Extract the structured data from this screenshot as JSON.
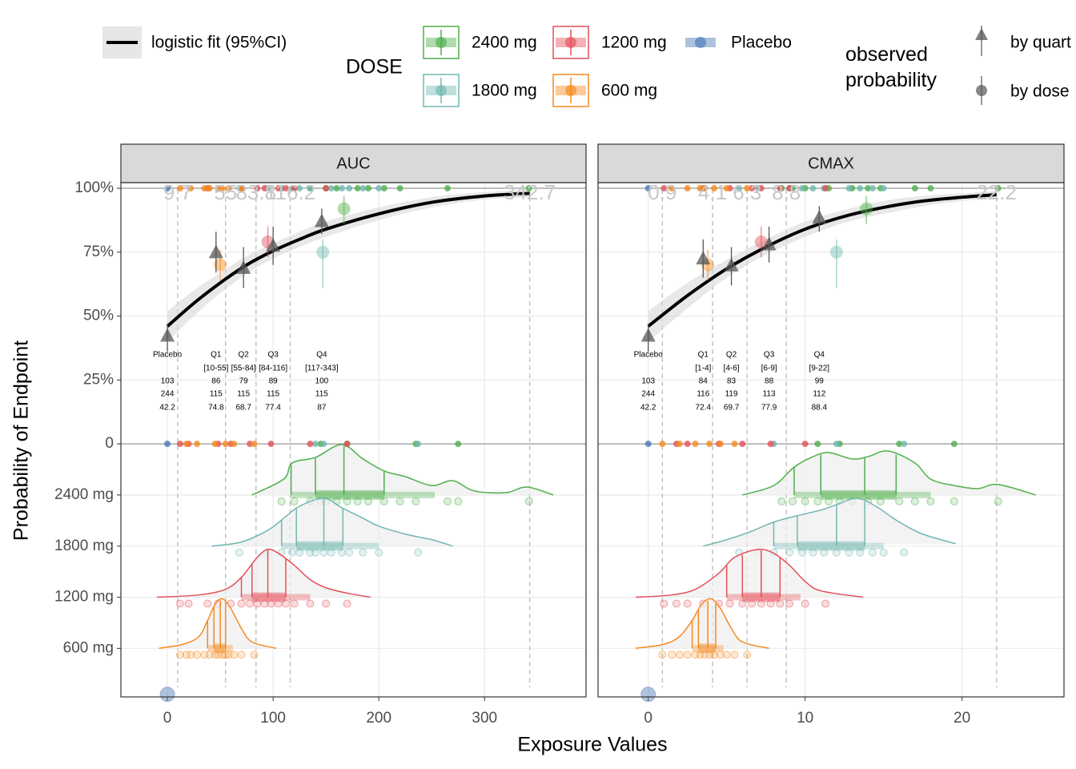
{
  "legend": {
    "fit_label": "logistic fit (95%CI)",
    "dose_title": "DOSE",
    "doses": [
      {
        "name": "2400 mg",
        "color": "#4daf4a"
      },
      {
        "name": "1800 mg",
        "color": "#72b7b2"
      },
      {
        "name": "1200 mg",
        "color": "#e4505a"
      },
      {
        "name": "600 mg",
        "color": "#f58a1f"
      },
      {
        "name": "Placebo",
        "color": "#4a78b5"
      }
    ],
    "observed_title": "observed probability",
    "by_quartile": "by quart",
    "by_dose": "by dose"
  },
  "axis_labels": {
    "y": "Probability of Endpoint",
    "x": "Exposure Values"
  },
  "chart_data": [
    {
      "type": "exposure-response",
      "title": "AUC",
      "xlim": [
        -44,
        396
      ],
      "xticks": [
        0,
        100,
        200,
        300
      ],
      "ylim": [
        -99,
        102.2
      ],
      "yticks": [
        {
          "value": 100,
          "label": "100%"
        },
        {
          "value": 75,
          "label": "75%"
        },
        {
          "value": 50,
          "label": "50%"
        },
        {
          "value": 25,
          "label": "25%"
        },
        0,
        {
          "value": -20,
          "label": "2400 mg"
        },
        {
          "value": -40,
          "label": "1800 mg"
        },
        {
          "value": -60,
          "label": "1200 mg"
        },
        {
          "value": -80,
          "label": "600 mg"
        }
      ],
      "grid": true,
      "hlines": [
        100,
        0
      ],
      "cutpoints": [
        9.7,
        55,
        83.8,
        116.2,
        342.7
      ],
      "fit": {
        "x": [
          0,
          25,
          50,
          75,
          100,
          125,
          150,
          200,
          250,
          300,
          342.7
        ],
        "y": [
          46,
          55,
          63,
          70,
          75.5,
          80,
          84,
          90,
          94.5,
          97,
          98
        ],
        "lower": [
          40,
          50,
          59,
          66.5,
          72.5,
          77,
          81,
          87.5,
          92.5,
          95.5,
          96.5
        ],
        "upper": [
          52,
          60,
          67,
          73.5,
          78.5,
          83,
          87,
          92.5,
          96.5,
          98.5,
          99.5
        ]
      },
      "quartiles": {
        "labels": [
          "Placebo",
          "Q1",
          "Q2",
          "Q3",
          "Q4"
        ],
        "ranges": [
          null,
          "[10-55]",
          "[55-84]",
          "[84-116]",
          "[117-343]"
        ],
        "events": [
          103,
          86,
          79,
          89,
          100
        ],
        "n": [
          244,
          115,
          115,
          115,
          115
        ],
        "pct": [
          42.2,
          74.8,
          68.7,
          77.4,
          87
        ],
        "x": [
          0,
          46,
          72,
          100,
          146
        ],
        "lower": [
          36,
          67,
          61,
          70,
          82
        ],
        "upper": [
          47,
          83,
          77,
          85,
          92
        ]
      },
      "series": [
        {
          "row": -20,
          "observed": {
            "x": 167,
            "y": 92,
            "lower": 86,
            "upper": 97
          },
          "summary": {
            "p10": 117,
            "q1": 140,
            "median": 167,
            "q3": 205,
            "p90": 253
          },
          "density": {
            "x": [
              80,
              110,
              118,
              140,
              165,
              185,
              205,
              225,
              250,
              270,
              290,
              320,
              340,
              365
            ],
            "y": [
              -20,
              -13.8,
              -7.5,
              -5.3,
              -0.3,
              -5.9,
              -10.6,
              -12.8,
              -16.3,
              -14.4,
              -18.4,
              -19.1,
              -16.9,
              -20
            ]
          },
          "exposures": [
            108,
            120,
            135,
            145,
            150,
            160,
            170,
            180,
            190,
            205,
            220,
            235,
            265,
            275,
            342
          ],
          "responses": [
            100,
            100,
            100,
            0,
            100,
            100,
            0,
            100,
            100,
            100,
            100,
            0,
            100,
            0,
            100
          ]
        },
        {
          "row": -40,
          "observed": {
            "x": 147,
            "y": 75,
            "lower": 61,
            "upper": 80
          },
          "summary": {
            "p10": 108,
            "q1": 122,
            "median": 148,
            "q3": 166,
            "p90": 200
          },
          "density": {
            "x": [
              42,
              70,
              95,
              110,
              125,
              148,
              165,
              185,
              200,
              225,
              250,
              270
            ],
            "y": [
              -40,
              -38.4,
              -33.8,
              -29.1,
              -24.4,
              -21.3,
              -25,
              -29.1,
              -32.2,
              -35.3,
              -37.5,
              -40
            ]
          },
          "exposures": [
            68,
            95,
            108,
            118,
            125,
            135,
            140,
            148,
            155,
            165,
            172,
            185,
            200,
            237
          ],
          "responses": [
            100,
            100,
            100,
            100,
            100,
            100,
            0,
            0,
            100,
            100,
            100,
            100,
            100,
            0
          ]
        },
        {
          "row": -60,
          "observed": {
            "x": 95,
            "y": 79,
            "lower": 73,
            "upper": 85
          },
          "summary": {
            "p10": 70,
            "q1": 80,
            "median": 95,
            "q3": 112,
            "p90": 135
          },
          "density": {
            "x": [
              -10,
              30,
              55,
              70,
              85,
              95,
              105,
              120,
              135,
              150,
              170,
              192
            ],
            "y": [
              -60,
              -59.1,
              -56.9,
              -52.2,
              -44.4,
              -41.3,
              -42.8,
              -47.5,
              -53.1,
              -56.3,
              -58.4,
              -60
            ]
          },
          "exposures": [
            12,
            20,
            38,
            48,
            60,
            70,
            78,
            85,
            92,
            98,
            105,
            112,
            120,
            135,
            150,
            170
          ],
          "responses": [
            0,
            0,
            100,
            0,
            0,
            100,
            0,
            100,
            100,
            0,
            100,
            100,
            100,
            0,
            100,
            0
          ]
        },
        {
          "row": -80,
          "observed": {
            "x": 50,
            "y": 70,
            "lower": 64,
            "upper": 76
          },
          "summary": {
            "p10": 38,
            "q1": 44,
            "median": 50,
            "q3": 55,
            "p90": 62
          },
          "density": {
            "x": [
              -8,
              15,
              30,
              38,
              45,
              52,
              60,
              70,
              80,
              103
            ],
            "y": [
              -80,
              -78.4,
              -75.3,
              -69.1,
              -62.8,
              -60.6,
              -64.4,
              -72.2,
              -77.5,
              -80
            ]
          },
          "exposures": [
            12,
            18,
            22,
            28,
            35,
            40,
            45,
            48,
            52,
            55,
            58,
            63,
            70,
            82
          ],
          "responses": [
            100,
            0,
            100,
            0,
            100,
            100,
            0,
            100,
            100,
            0,
            100,
            0,
            100,
            0
          ]
        },
        {
          "row": -98,
          "exposures": [
            0,
            0
          ],
          "responses": [
            100,
            0
          ]
        }
      ]
    },
    {
      "type": "exposure-response",
      "title": "CMAX",
      "xlim": [
        -3.2,
        26.5
      ],
      "xticks": [
        0,
        10,
        20
      ],
      "ylim": [
        -99,
        102.2
      ],
      "yticks": [
        {
          "value": 100,
          "label": "100%"
        },
        {
          "value": 75,
          "label": "75%"
        },
        {
          "value": 50,
          "label": "50%"
        },
        {
          "value": 25,
          "label": "25%"
        },
        0,
        {
          "value": -20,
          "label": "2400 mg"
        },
        {
          "value": -40,
          "label": "1800 mg"
        },
        {
          "value": -60,
          "label": "1200 mg"
        },
        {
          "value": -80,
          "label": "600 mg"
        }
      ],
      "grid": true,
      "hlines": [
        100,
        0
      ],
      "cutpoints": [
        0.9,
        4.1,
        6.3,
        8.8,
        22.2
      ],
      "fit": {
        "x": [
          0,
          2.5,
          5,
          7.5,
          10,
          12.5,
          15,
          17.5,
          20,
          22.2
        ],
        "y": [
          46,
          58,
          68.5,
          77,
          84,
          89,
          92.5,
          95,
          96.5,
          97.5
        ],
        "lower": [
          40,
          53,
          65,
          74,
          81,
          86.5,
          90,
          93,
          95,
          96
        ],
        "upper": [
          52,
          63,
          72,
          80,
          87,
          91.5,
          95,
          97,
          98,
          99
        ]
      },
      "quartiles": {
        "labels": [
          "Placebo",
          "Q1",
          "Q2",
          "Q3",
          "Q4"
        ],
        "ranges": [
          null,
          "[1-4]",
          "[4-6]",
          "[6-9]",
          "[9-22]"
        ],
        "events": [
          103,
          84,
          83,
          88,
          99
        ],
        "n": [
          244,
          116,
          119,
          113,
          112
        ],
        "pct": [
          42.2,
          72.4,
          69.7,
          77.9,
          88.4
        ],
        "x": [
          0,
          3.5,
          5.3,
          7.7,
          10.9
        ],
        "lower": [
          36,
          65,
          62,
          71,
          83
        ],
        "upper": [
          47,
          80,
          77,
          85,
          93
        ]
      },
      "series": [
        {
          "row": -20,
          "observed": {
            "x": 13.9,
            "y": 92,
            "lower": 86,
            "upper": 97
          },
          "summary": {
            "p10": 9.3,
            "q1": 11,
            "median": 13.8,
            "q3": 15.8,
            "p90": 18
          },
          "density": {
            "x": [
              6,
              8,
              9.3,
              10.5,
              11.5,
              13,
              14,
              15.3,
              17,
              18,
              19.5,
              21,
              22.3,
              24.7
            ],
            "y": [
              -20,
              -16.3,
              -9.1,
              -5,
              -3.4,
              -5.9,
              -5,
              -2.8,
              -7.5,
              -13.8,
              -16.3,
              -17.5,
              -15.9,
              -20
            ]
          },
          "exposures": [
            8.5,
            9.2,
            10,
            10.8,
            11.5,
            12.2,
            13,
            14,
            14.8,
            16,
            17,
            18,
            19.5,
            22.3
          ],
          "responses": [
            100,
            100,
            100,
            0,
            100,
            0,
            100,
            100,
            100,
            0,
            100,
            100,
            0,
            100
          ]
        },
        {
          "row": -40,
          "observed": {
            "x": 12,
            "y": 75,
            "lower": 61,
            "upper": 80
          },
          "summary": {
            "p10": 8,
            "q1": 9.5,
            "median": 12,
            "q3": 13.8,
            "p90": 15
          },
          "density": {
            "x": [
              3.5,
              5,
              6.5,
              8,
              9.5,
              11,
              12,
              13.3,
              14.5,
              16,
              17.5,
              19.6
            ],
            "y": [
              -40,
              -37.5,
              -34.4,
              -30.6,
              -28.1,
              -25.9,
              -23.8,
              -21.3,
              -24.4,
              -30.6,
              -35.3,
              -39.1
            ]
          },
          "exposures": [
            5.8,
            7,
            8,
            9,
            9.8,
            10.5,
            11.2,
            12,
            12.8,
            13.5,
            14.3,
            15,
            16.3
          ],
          "responses": [
            100,
            100,
            0,
            100,
            100,
            100,
            100,
            0,
            100,
            100,
            100,
            100,
            0
          ]
        },
        {
          "row": -60,
          "observed": {
            "x": 7.2,
            "y": 79,
            "lower": 73,
            "upper": 85
          },
          "summary": {
            "p10": 5,
            "q1": 6,
            "median": 7.2,
            "q3": 8.4,
            "p90": 9.7
          },
          "density": {
            "x": [
              -0.8,
              1.5,
              3,
              4.5,
              5.5,
              7,
              8,
              9,
              10,
              11,
              13.7
            ],
            "y": [
              -60,
              -59.1,
              -56.9,
              -50.6,
              -44.4,
              -41.3,
              -42.8,
              -47.5,
              -53.8,
              -57.5,
              -60
            ]
          },
          "exposures": [
            1,
            1.8,
            2.5,
            3.5,
            4.5,
            5.2,
            6,
            6.6,
            7.2,
            7.8,
            8.4,
            9,
            10,
            11.3
          ],
          "responses": [
            100,
            0,
            0,
            100,
            0,
            100,
            0,
            100,
            100,
            0,
            100,
            100,
            0,
            100
          ]
        },
        {
          "row": -80,
          "observed": {
            "x": 3.8,
            "y": 70,
            "lower": 64,
            "upper": 76
          },
          "summary": {
            "p10": 2.8,
            "q1": 3.2,
            "median": 3.8,
            "q3": 4.3,
            "p90": 4.8
          },
          "density": {
            "x": [
              -0.8,
              1,
              2,
              2.8,
              3.4,
              4,
              4.6,
              5.3,
              6,
              7.7
            ],
            "y": [
              -80,
              -78.4,
              -75.3,
              -69.1,
              -62.8,
              -60.6,
              -64.4,
              -72.2,
              -77.5,
              -80
            ]
          },
          "exposures": [
            0.9,
            1.5,
            2,
            2.5,
            3,
            3.3,
            3.6,
            3.9,
            4.2,
            4.6,
            5,
            5.5,
            6.3
          ],
          "responses": [
            0,
            100,
            0,
            100,
            0,
            100,
            100,
            0,
            100,
            0,
            100,
            0,
            100
          ]
        },
        {
          "row": -98,
          "exposures": [
            0,
            0
          ],
          "responses": [
            100,
            0
          ]
        }
      ]
    }
  ]
}
